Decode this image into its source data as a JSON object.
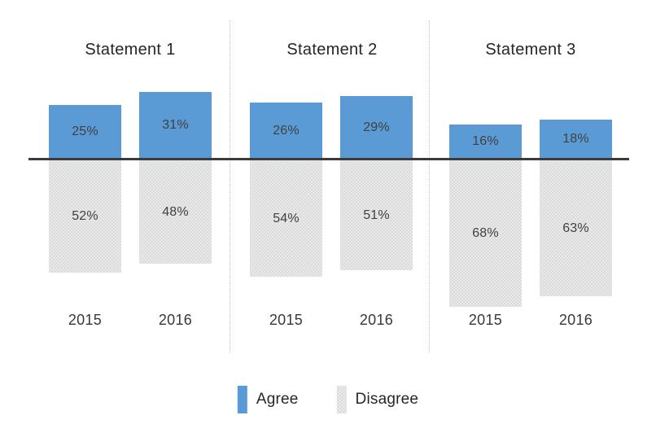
{
  "chart_data": {
    "type": "bar",
    "subtype": "diverging-stacked-columns",
    "title": "",
    "xlabel": "",
    "ylabel": "",
    "grid": false,
    "legend": {
      "position": "bottom",
      "entries": [
        "Agree",
        "Disagree"
      ]
    },
    "categories": [
      "2015",
      "2016",
      "2015",
      "2016",
      "2015",
      "2016"
    ],
    "series": [
      {
        "name": "Agree",
        "direction": "up",
        "values": [
          25,
          31,
          26,
          29,
          16,
          18
        ]
      },
      {
        "name": "Disagree",
        "direction": "down",
        "values": [
          52,
          48,
          54,
          51,
          68,
          63
        ]
      }
    ],
    "panels": [
      {
        "title": "Statement 1",
        "groups": [
          {
            "year": "2015",
            "agree": 25,
            "agree_label": "25%",
            "disagree": 52,
            "disagree_label": "52%"
          },
          {
            "year": "2016",
            "agree": 31,
            "agree_label": "31%",
            "disagree": 48,
            "disagree_label": "48%"
          }
        ]
      },
      {
        "title": "Statement 2",
        "groups": [
          {
            "year": "2015",
            "agree": 26,
            "agree_label": "26%",
            "disagree": 54,
            "disagree_label": "54%"
          },
          {
            "year": "2016",
            "agree": 29,
            "agree_label": "29%",
            "disagree": 51,
            "disagree_label": "51%"
          }
        ]
      },
      {
        "title": "Statement 3",
        "groups": [
          {
            "year": "2015",
            "agree": 16,
            "agree_label": "16%",
            "disagree": 68,
            "disagree_label": "68%"
          },
          {
            "year": "2016",
            "agree": 18,
            "agree_label": "18%",
            "disagree": 63,
            "disagree_label": "63%"
          }
        ]
      }
    ],
    "colors": {
      "agree": "#5B9BD5",
      "disagree_base": "#e9e9e9",
      "disagree_dot": "#d2d2d2",
      "axis": "#3b3b3b",
      "label_text": "#404040",
      "title_text": "#262626"
    }
  }
}
